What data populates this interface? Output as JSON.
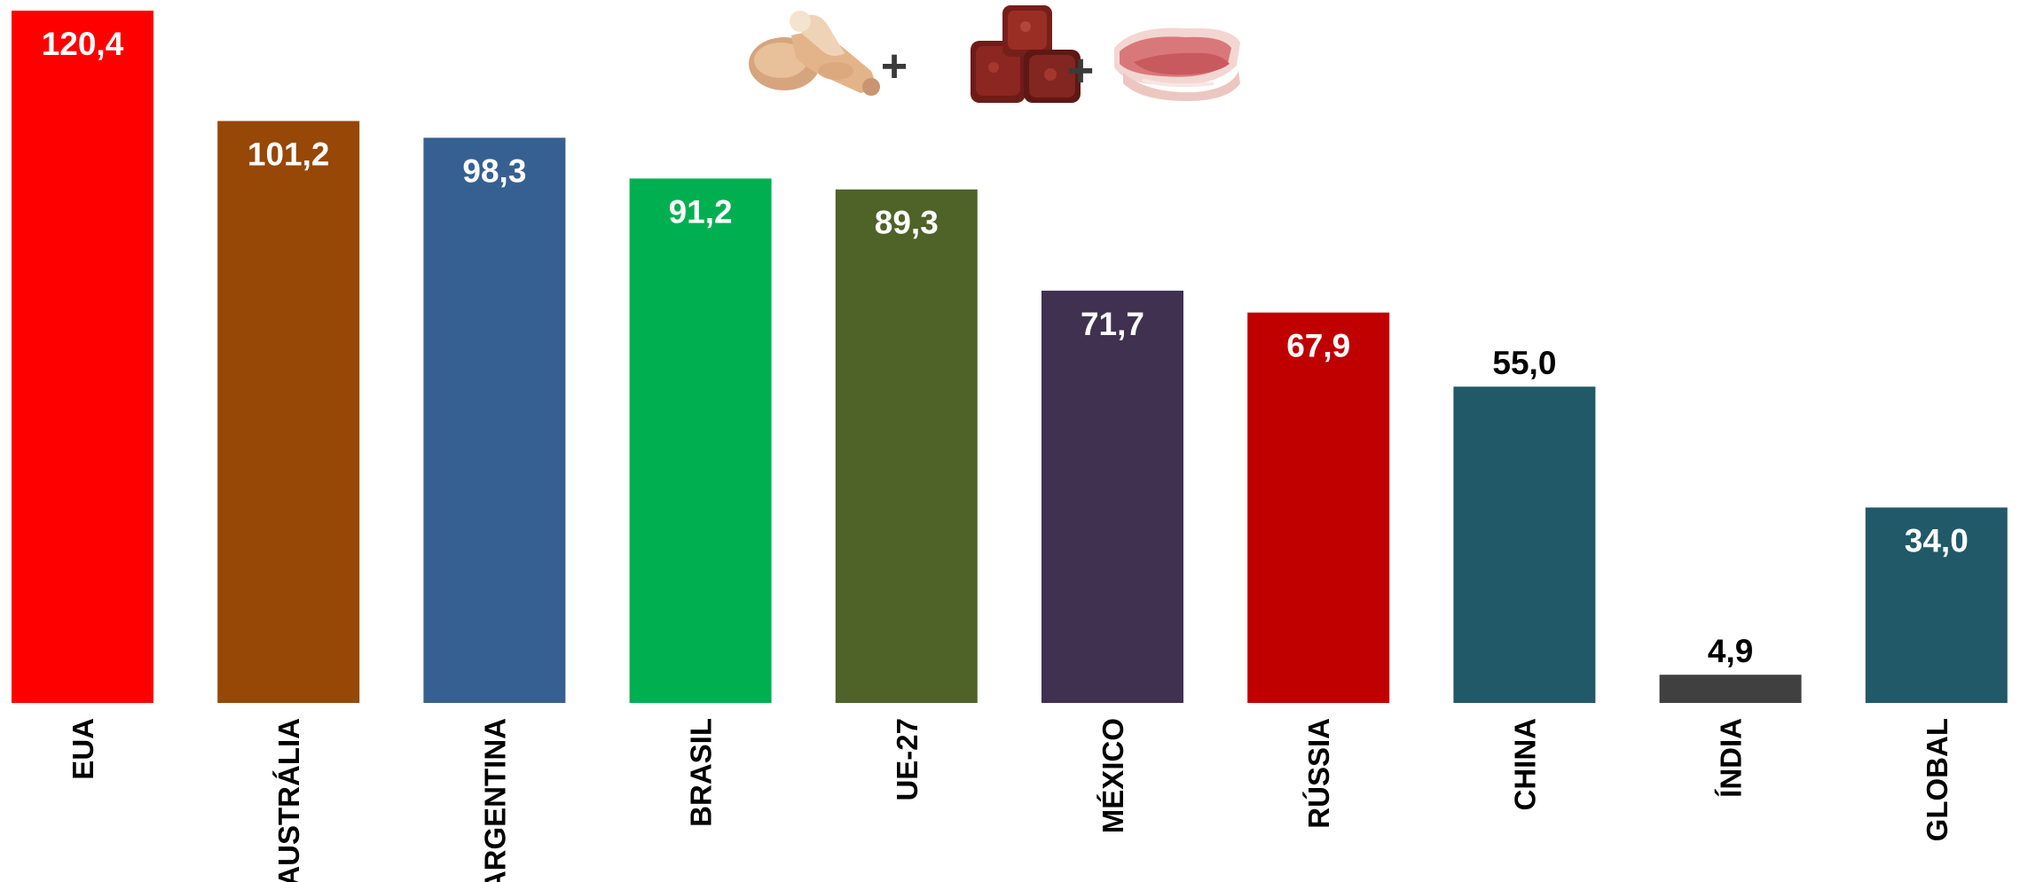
{
  "chart_data": {
    "type": "bar",
    "categories": [
      "EUA",
      "AUSTRÁLIA",
      "ARGENTINA",
      "BRASIL",
      "UE-27",
      "MÉXICO",
      "RÚSSIA",
      "CHINA",
      "ÍNDIA",
      "GLOBAL"
    ],
    "values": [
      120.4,
      101.2,
      98.3,
      91.2,
      89.3,
      71.7,
      67.9,
      55.0,
      4.9,
      34.0
    ],
    "value_labels": [
      "120,4",
      "101,2",
      "98,3",
      "91,2",
      "89,3",
      "71,7",
      "67,9",
      "55,0",
      "4,9",
      "34,0"
    ],
    "colors": [
      "#ff0000",
      "#974706",
      "#376092",
      "#00b050",
      "#4f6228",
      "#403151",
      "#c00000",
      "#215968",
      "#404040",
      "#215968"
    ],
    "label_colors": [
      "#ffffff",
      "#ffffff",
      "#ffffff",
      "#ffffff",
      "#ffffff",
      "#ffffff",
      "#ffffff",
      "#000000",
      "#000000",
      "#ffffff"
    ],
    "label_inside": [
      true,
      true,
      true,
      true,
      true,
      true,
      true,
      false,
      false,
      true
    ],
    "ylim": [
      0,
      120.4
    ],
    "grid": false,
    "legend": "none",
    "title": "",
    "xlabel": "",
    "ylabel": ""
  },
  "header_images": {
    "items": [
      "chicken-drumsticks-image",
      "beef-cubes-image",
      "pork-chops-image"
    ],
    "separator": "+"
  }
}
